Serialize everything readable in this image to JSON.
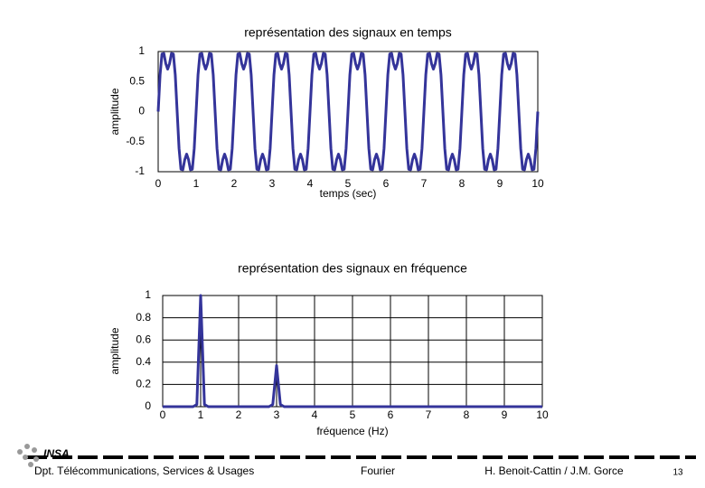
{
  "chart_data": [
    {
      "type": "line",
      "title": "représentation des signaux en temps",
      "xlabel": "temps (sec)",
      "ylabel": "amplitude",
      "xlim": [
        0,
        10
      ],
      "ylim": [
        -1,
        1
      ],
      "xticks": [
        0,
        1,
        2,
        3,
        4,
        5,
        6,
        7,
        8,
        9,
        10
      ],
      "yticks": [
        1,
        0.5,
        0,
        -0.5,
        -1
      ],
      "grid": false,
      "color": "#34349a",
      "x": [
        0,
        0.05,
        0.1,
        0.15,
        0.2,
        0.25,
        0.3,
        0.35,
        0.4,
        0.45,
        0.5,
        0.55,
        0.6,
        0.65,
        0.7,
        0.75,
        0.8,
        0.85,
        0.9,
        0.95,
        1,
        1.05,
        1.1,
        1.15,
        1.2,
        1.25,
        1.3,
        1.35,
        1.4,
        1.45,
        1.5,
        1.55,
        1.6,
        1.65,
        1.7,
        1.75,
        1.8,
        1.85,
        1.9,
        1.95,
        2,
        2.05,
        2.1,
        2.15,
        2.2,
        2.25,
        2.3,
        2.35,
        2.4,
        2.45,
        2.5,
        2.55,
        2.6,
        2.65,
        2.7,
        2.75,
        2.8,
        2.85,
        2.9,
        2.95,
        3,
        3.05,
        3.1,
        3.15,
        3.2,
        3.25,
        3.3,
        3.35,
        3.4,
        3.45,
        3.5,
        3.55,
        3.6,
        3.65,
        3.7,
        3.75,
        3.8,
        3.85,
        3.9,
        3.95,
        4,
        4.05,
        4.1,
        4.15,
        4.2,
        4.25,
        4.3,
        4.35,
        4.4,
        4.45,
        4.5,
        4.55,
        4.6,
        4.65,
        4.7,
        4.75,
        4.8,
        4.85,
        4.9,
        4.95,
        5,
        5.05,
        5.1,
        5.15,
        5.2,
        5.25,
        5.3,
        5.35,
        5.4,
        5.45,
        5.5,
        5.55,
        5.6,
        5.65,
        5.7,
        5.75,
        5.8,
        5.85,
        5.9,
        5.95,
        6,
        6.05,
        6.1,
        6.15,
        6.2,
        6.25,
        6.3,
        6.35,
        6.4,
        6.45,
        6.5,
        6.55,
        6.6,
        6.65,
        6.7,
        6.75,
        6.8,
        6.85,
        6.9,
        6.95,
        7,
        7.05,
        7.1,
        7.15,
        7.2,
        7.25,
        7.3,
        7.35,
        7.4,
        7.45,
        7.5,
        7.55,
        7.6,
        7.65,
        7.7,
        7.75,
        7.8,
        7.85,
        7.9,
        7.95,
        8,
        8.05,
        8.1,
        8.15,
        8.2,
        8.25,
        8.3,
        8.35,
        8.4,
        8.45,
        8.5,
        8.55,
        8.6,
        8.65,
        8.7,
        8.75,
        8.8,
        8.85,
        8.9,
        8.95,
        9,
        9.05,
        9.1,
        9.15,
        9.2,
        9.25,
        9.3,
        9.35,
        9.4,
        9.45,
        9.5,
        9.55,
        9.6,
        9.65,
        9.7,
        9.75,
        9.8,
        9.85,
        9.9,
        9.95,
        10
      ],
      "values": [
        0,
        0.613,
        0.959,
        0.967,
        0.8,
        0.707,
        0.8,
        0.967,
        0.959,
        0.613,
        0,
        -0.613,
        -0.959,
        -0.967,
        -0.8,
        -0.707,
        -0.8,
        -0.967,
        -0.959,
        -0.613,
        0,
        0.613,
        0.959,
        0.967,
        0.8,
        0.707,
        0.8,
        0.967,
        0.959,
        0.613,
        0,
        -0.613,
        -0.959,
        -0.967,
        -0.8,
        -0.707,
        -0.8,
        -0.967,
        -0.959,
        -0.613,
        0,
        0.613,
        0.959,
        0.967,
        0.8,
        0.707,
        0.8,
        0.967,
        0.959,
        0.613,
        0,
        -0.613,
        -0.959,
        -0.967,
        -0.8,
        -0.707,
        -0.8,
        -0.967,
        -0.959,
        -0.613,
        0,
        0.613,
        0.959,
        0.967,
        0.8,
        0.707,
        0.8,
        0.967,
        0.959,
        0.613,
        0,
        -0.613,
        -0.959,
        -0.967,
        -0.8,
        -0.707,
        -0.8,
        -0.967,
        -0.959,
        -0.613,
        0,
        0.613,
        0.959,
        0.967,
        0.8,
        0.707,
        0.8,
        0.967,
        0.959,
        0.613,
        0,
        -0.613,
        -0.959,
        -0.967,
        -0.8,
        -0.707,
        -0.8,
        -0.967,
        -0.959,
        -0.613,
        0,
        0.613,
        0.959,
        0.967,
        0.8,
        0.707,
        0.8,
        0.967,
        0.959,
        0.613,
        0,
        -0.613,
        -0.959,
        -0.967,
        -0.8,
        -0.707,
        -0.8,
        -0.967,
        -0.959,
        -0.613,
        0,
        0.613,
        0.959,
        0.967,
        0.8,
        0.707,
        0.8,
        0.967,
        0.959,
        0.613,
        0,
        -0.613,
        -0.959,
        -0.967,
        -0.8,
        -0.707,
        -0.8,
        -0.967,
        -0.959,
        -0.613,
        0,
        0.613,
        0.959,
        0.967,
        0.8,
        0.707,
        0.8,
        0.967,
        0.959,
        0.613,
        0,
        -0.613,
        -0.959,
        -0.967,
        -0.8,
        -0.707,
        -0.8,
        -0.967,
        -0.959,
        -0.613,
        0,
        0.613,
        0.959,
        0.967,
        0.8,
        0.707,
        0.8,
        0.967,
        0.959,
        0.613,
        0,
        -0.613,
        -0.959,
        -0.967,
        -0.8,
        -0.707,
        -0.8,
        -0.967,
        -0.959,
        -0.613,
        0,
        0.613,
        0.959,
        0.967,
        0.8,
        0.707,
        0.8,
        0.967,
        0.959,
        0.613,
        0,
        -0.613,
        -0.959,
        -0.967,
        -0.8,
        -0.707,
        -0.8,
        -0.967,
        -0.959,
        -0.613,
        0
      ]
    },
    {
      "type": "line",
      "title": "représentation des signaux en fréquence",
      "xlabel": "fréquence (Hz)",
      "ylabel": "amplitude",
      "xlim": [
        0,
        10
      ],
      "ylim": [
        0,
        1
      ],
      "xticks": [
        0,
        1,
        2,
        3,
        4,
        5,
        6,
        7,
        8,
        9,
        10
      ],
      "yticks": [
        1,
        0.8,
        0.6,
        0.4,
        0.2,
        0
      ],
      "grid": true,
      "color": "#34349a",
      "x": [
        0,
        0.8,
        0.9,
        1,
        1.1,
        1.2,
        2.8,
        2.9,
        3,
        3.1,
        3.2,
        10
      ],
      "values": [
        0,
        0,
        0.02,
        1,
        0.02,
        0,
        0,
        0.02,
        0.37,
        0.02,
        0,
        0
      ]
    }
  ],
  "footer": {
    "logo": "INSA",
    "department": "Dpt. Télécommunications, Services & Usages",
    "topic": "Fourier",
    "authors": "H. Benoit-Cattin / J.M. Gorce",
    "page": "13"
  }
}
